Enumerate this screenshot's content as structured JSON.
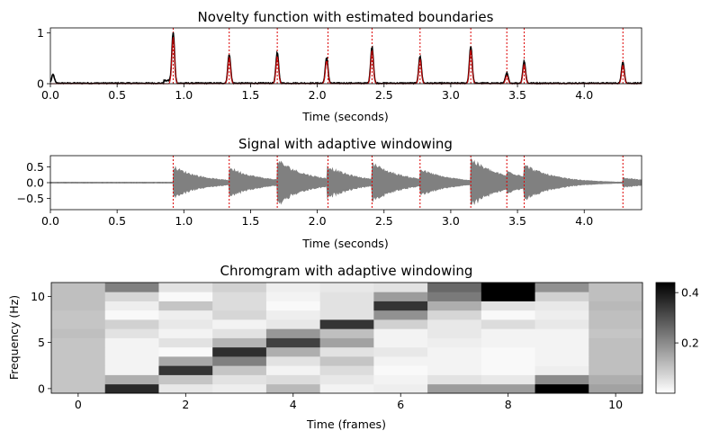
{
  "chart_data": [
    {
      "type": "line",
      "title": "Novelty function with estimated boundaries",
      "xlabel": "Time (seconds)",
      "ylabel": "",
      "xlim": [
        0,
        4.43
      ],
      "ylim": [
        0,
        1.1
      ],
      "xticks": [
        "0.0",
        "0.5",
        "1.0",
        "1.5",
        "2.0",
        "2.5",
        "3.0",
        "3.5",
        "4.0"
      ],
      "yticks": [
        "0",
        "1"
      ],
      "series": [
        {
          "color": "#000000",
          "peaks": [
            [
              0.02,
              0.17
            ],
            [
              0.92,
              1.0
            ],
            [
              1.34,
              0.57
            ],
            [
              1.7,
              0.6
            ],
            [
              2.07,
              0.5
            ],
            [
              2.41,
              0.72
            ],
            [
              2.77,
              0.53
            ],
            [
              3.15,
              0.73
            ],
            [
              3.42,
              0.2
            ],
            [
              3.55,
              0.43
            ],
            [
              4.29,
              0.42
            ]
          ]
        },
        {
          "color": "#cc0000",
          "peaks": [
            [
              0.92,
              0.92
            ],
            [
              1.34,
              0.52
            ],
            [
              1.7,
              0.54
            ],
            [
              2.07,
              0.45
            ],
            [
              2.41,
              0.66
            ],
            [
              2.77,
              0.48
            ],
            [
              3.15,
              0.67
            ],
            [
              3.42,
              0.16
            ],
            [
              3.55,
              0.38
            ],
            [
              4.29,
              0.37
            ]
          ]
        }
      ],
      "boundaries": [
        0.92,
        1.34,
        1.7,
        2.08,
        2.41,
        2.77,
        3.15,
        3.42,
        3.55,
        4.29
      ]
    },
    {
      "type": "area",
      "title": "Signal with adaptive windowing",
      "xlabel": "Time (seconds)",
      "ylabel": "",
      "xlim": [
        0,
        4.43
      ],
      "ylim": [
        -0.85,
        0.85
      ],
      "xticks": [
        "0.0",
        "0.5",
        "1.0",
        "1.5",
        "2.0",
        "2.5",
        "3.0",
        "3.5",
        "4.0"
      ],
      "yticks": [
        "0.5",
        "0.0",
        "−0.5"
      ],
      "signal_color": "#808080",
      "envelope_peaks": [
        [
          0.92,
          0.55
        ],
        [
          1.34,
          0.52
        ],
        [
          1.7,
          0.78
        ],
        [
          2.07,
          0.58
        ],
        [
          2.41,
          0.68
        ],
        [
          2.77,
          0.46
        ],
        [
          3.15,
          0.82
        ],
        [
          3.42,
          0.4
        ],
        [
          3.55,
          0.62
        ],
        [
          4.29,
          0.18
        ]
      ],
      "boundaries": [
        0.92,
        1.34,
        1.7,
        2.08,
        2.41,
        2.77,
        3.15,
        3.42,
        3.55,
        4.29
      ]
    },
    {
      "type": "heatmap",
      "title": "Chromgram with adaptive windowing",
      "xlabel": "Time (frames)",
      "ylabel": "Frequency (Hz)",
      "xlim": [
        -0.5,
        10.5
      ],
      "ylim": [
        -0.5,
        11.5
      ],
      "xticks": [
        "0",
        "2",
        "4",
        "6",
        "8",
        "10"
      ],
      "yticks": [
        "0",
        "5",
        "10"
      ],
      "colorbar_ticks": [
        "0.2",
        "0.4"
      ],
      "vmin": 0.0,
      "vmax": 0.44,
      "values": [
        [
          0.1,
          0.37,
          0.04,
          0.03,
          0.12,
          0.02,
          0.03,
          0.17,
          0.17,
          0.44,
          0.16
        ],
        [
          0.1,
          0.14,
          0.1,
          0.05,
          0.06,
          0.04,
          0.02,
          0.05,
          0.04,
          0.2,
          0.14
        ],
        [
          0.1,
          0.02,
          0.35,
          0.1,
          0.02,
          0.06,
          0.01,
          0.02,
          0.01,
          0.03,
          0.11
        ],
        [
          0.1,
          0.02,
          0.15,
          0.22,
          0.05,
          0.1,
          0.02,
          0.02,
          0.01,
          0.02,
          0.11
        ],
        [
          0.1,
          0.02,
          0.01,
          0.36,
          0.14,
          0.05,
          0.04,
          0.02,
          0.01,
          0.02,
          0.11
        ],
        [
          0.1,
          0.02,
          0.05,
          0.13,
          0.33,
          0.16,
          0.02,
          0.03,
          0.02,
          0.02,
          0.11
        ],
        [
          0.11,
          0.05,
          0.02,
          0.05,
          0.18,
          0.11,
          0.02,
          0.04,
          0.02,
          0.02,
          0.1
        ],
        [
          0.1,
          0.08,
          0.04,
          0.02,
          0.04,
          0.35,
          0.08,
          0.04,
          0.06,
          0.04,
          0.11
        ],
        [
          0.1,
          0.01,
          0.03,
          0.07,
          0.03,
          0.05,
          0.19,
          0.07,
          0.01,
          0.03,
          0.11
        ],
        [
          0.11,
          0.03,
          0.1,
          0.06,
          0.01,
          0.05,
          0.35,
          0.14,
          0.05,
          0.04,
          0.12
        ],
        [
          0.11,
          0.07,
          0.01,
          0.06,
          0.02,
          0.05,
          0.17,
          0.23,
          0.44,
          0.08,
          0.11
        ],
        [
          0.11,
          0.22,
          0.05,
          0.08,
          0.03,
          0.04,
          0.05,
          0.26,
          0.44,
          0.19,
          0.11
        ]
      ]
    }
  ]
}
